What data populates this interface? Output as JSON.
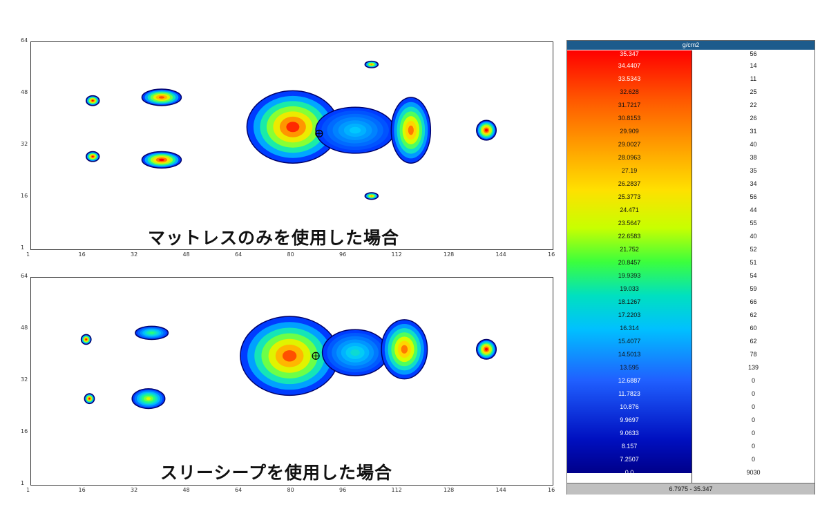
{
  "chart_data": [
    {
      "type": "heatmap",
      "caption": "マットレスのみを使用した場合",
      "x_ticks": [
        "1",
        "16",
        "32",
        "48",
        "64",
        "80",
        "96",
        "112",
        "128",
        "144",
        "16"
      ],
      "y_ticks": [
        "64",
        "48",
        "32",
        "16",
        "1"
      ],
      "xlim": [
        1,
        160
      ],
      "ylim": [
        1,
        64
      ],
      "blobs": [
        {
          "x": 20,
          "y": 46,
          "rx": 2,
          "ry": 1.5,
          "peak": 1.0
        },
        {
          "x": 41,
          "y": 47,
          "rx": 6,
          "ry": 2.5,
          "peak": 0.9
        },
        {
          "x": 20,
          "y": 29,
          "rx": 2,
          "ry": 1.5,
          "peak": 1.0
        },
        {
          "x": 41,
          "y": 28,
          "rx": 6,
          "ry": 2.5,
          "peak": 1.0
        },
        {
          "x": 105,
          "y": 57,
          "rx": 2,
          "ry": 1,
          "peak": 0.8
        },
        {
          "x": 105,
          "y": 17,
          "rx": 2,
          "ry": 1,
          "peak": 0.8
        },
        {
          "x": 140,
          "y": 37,
          "rx": 3,
          "ry": 3,
          "peak": 1.0
        },
        {
          "x": 81,
          "y": 38,
          "rx": 14,
          "ry": 11,
          "peak": 0.95
        },
        {
          "x": 100,
          "y": 37,
          "rx": 12,
          "ry": 7,
          "peak": 0.3
        },
        {
          "x": 117,
          "y": 37,
          "rx": 6,
          "ry": 10,
          "peak": 0.85
        }
      ],
      "marker": {
        "x": 89,
        "y": 36
      }
    },
    {
      "type": "heatmap",
      "caption": "スリーシープを使用した場合",
      "x_ticks": [
        "1",
        "16",
        "32",
        "48",
        "64",
        "80",
        "96",
        "112",
        "128",
        "144",
        "16"
      ],
      "y_ticks": [
        "64",
        "48",
        "32",
        "16",
        "1"
      ],
      "xlim": [
        1,
        160
      ],
      "ylim": [
        1,
        64
      ],
      "blobs": [
        {
          "x": 18,
          "y": 45,
          "rx": 1.5,
          "ry": 1.5,
          "peak": 1.0
        },
        {
          "x": 38,
          "y": 47,
          "rx": 5,
          "ry": 2,
          "peak": 0.45
        },
        {
          "x": 19,
          "y": 27,
          "rx": 1.5,
          "ry": 1.5,
          "peak": 1.0
        },
        {
          "x": 37,
          "y": 27,
          "rx": 5,
          "ry": 3,
          "peak": 0.6
        },
        {
          "x": 140,
          "y": 42,
          "rx": 3,
          "ry": 3,
          "peak": 1.0
        },
        {
          "x": 80,
          "y": 40,
          "rx": 15,
          "ry": 12,
          "peak": 0.9
        },
        {
          "x": 100,
          "y": 41,
          "rx": 10,
          "ry": 7,
          "peak": 0.35
        },
        {
          "x": 115,
          "y": 42,
          "rx": 7,
          "ry": 9,
          "peak": 0.85
        }
      ],
      "marker": {
        "x": 88,
        "y": 40
      }
    }
  ],
  "legend": {
    "header": "g/cm2",
    "rows": [
      {
        "value": "35.347",
        "count": "56"
      },
      {
        "value": "34.4407",
        "count": "14"
      },
      {
        "value": "33.5343",
        "count": "11"
      },
      {
        "value": "32.628",
        "count": "25"
      },
      {
        "value": "31.7217",
        "count": "22"
      },
      {
        "value": "30.8153",
        "count": "26"
      },
      {
        "value": "29.909",
        "count": "31"
      },
      {
        "value": "29.0027",
        "count": "40"
      },
      {
        "value": "28.0963",
        "count": "38"
      },
      {
        "value": "27.19",
        "count": "35"
      },
      {
        "value": "26.2837",
        "count": "34"
      },
      {
        "value": "25.3773",
        "count": "56"
      },
      {
        "value": "24.471",
        "count": "44"
      },
      {
        "value": "23.5647",
        "count": "55"
      },
      {
        "value": "22.6583",
        "count": "40"
      },
      {
        "value": "21.752",
        "count": "52"
      },
      {
        "value": "20.8457",
        "count": "51"
      },
      {
        "value": "19.9393",
        "count": "54"
      },
      {
        "value": "19.033",
        "count": "59"
      },
      {
        "value": "18.1267",
        "count": "66"
      },
      {
        "value": "17.2203",
        "count": "62"
      },
      {
        "value": "16.314",
        "count": "60"
      },
      {
        "value": "15.4077",
        "count": "62"
      },
      {
        "value": "14.5013",
        "count": "78"
      },
      {
        "value": "13.595",
        "count": "139"
      },
      {
        "value": "12.6887",
        "count": "0"
      },
      {
        "value": "11.7823",
        "count": "0"
      },
      {
        "value": "10.876",
        "count": "0"
      },
      {
        "value": "9.9697",
        "count": "0"
      },
      {
        "value": "9.0633",
        "count": "0"
      },
      {
        "value": "8.157",
        "count": "0"
      },
      {
        "value": "7.2507",
        "count": "0"
      },
      {
        "value": "0.0",
        "count": "9030"
      }
    ],
    "footer": "6.7975 - 35.347"
  }
}
